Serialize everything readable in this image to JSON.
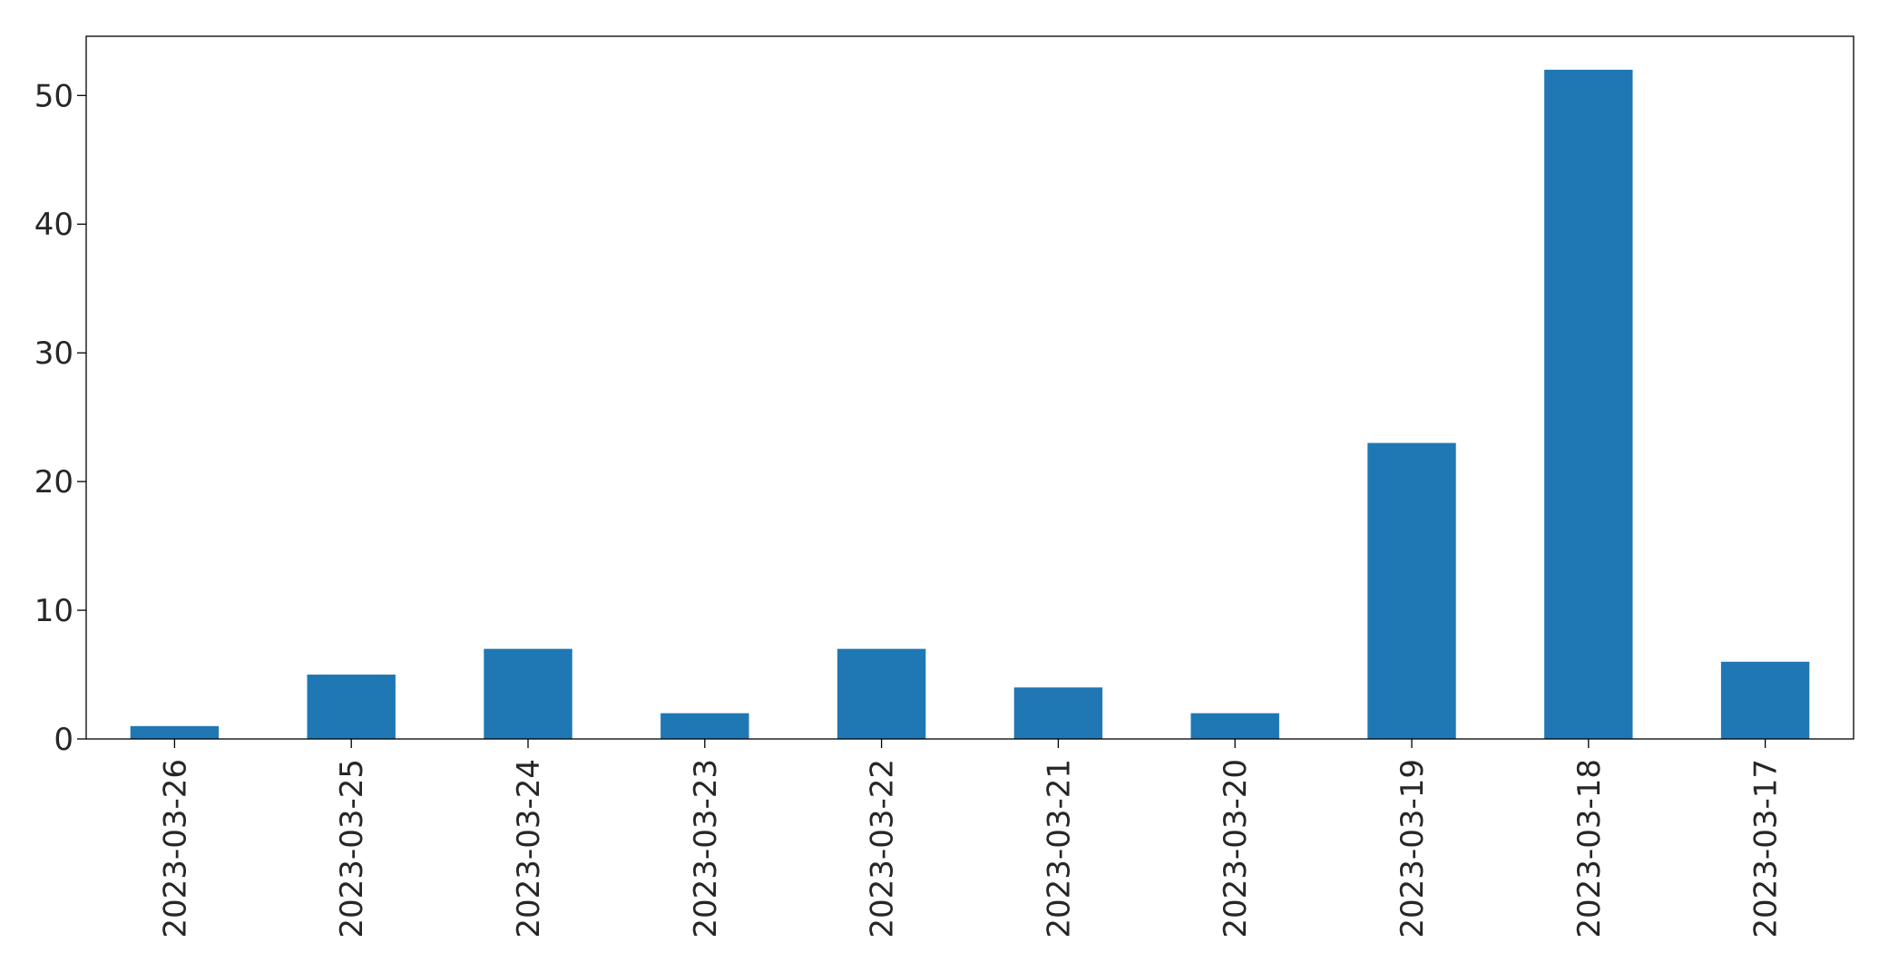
{
  "chart_data": {
    "type": "bar",
    "categories": [
      "2023-03-26",
      "2023-03-25",
      "2023-03-24",
      "2023-03-23",
      "2023-03-22",
      "2023-03-21",
      "2023-03-20",
      "2023-03-19",
      "2023-03-18",
      "2023-03-17"
    ],
    "values": [
      1,
      5,
      7,
      2,
      7,
      4,
      2,
      23,
      52,
      6
    ],
    "title": "",
    "xlabel": "",
    "ylabel": "",
    "ylim": [
      0,
      54.6
    ],
    "yticks": [
      0,
      10,
      20,
      30,
      40,
      50
    ],
    "grid": false,
    "legend": "none",
    "bar_color": "#1f77b4",
    "axis_color": "#000000",
    "text_color": "#262626"
  }
}
